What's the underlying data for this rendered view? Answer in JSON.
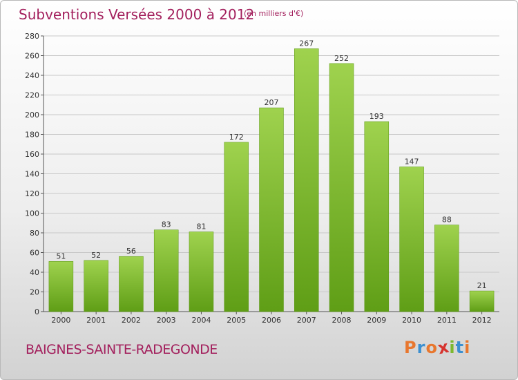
{
  "header": {
    "title": "Subventions Versées 2000 à 2012",
    "unit_note": "(en milliers d'€)"
  },
  "footer": {
    "commune": "BAIGNES-SAINTE-RADEGONDE",
    "logo_text": "Proxiti"
  },
  "colors": {
    "title": "#a3205d",
    "bar_top": "#9fd24e",
    "bar_bottom": "#5f9e16",
    "logo_letters": [
      "#e8772e",
      "#3b8fd0",
      "#e8772e",
      "#d6332e",
      "#7cb82f",
      "#3b8fd0",
      "#e8772e"
    ]
  },
  "chart_data": {
    "type": "bar",
    "title": "Subventions Versées 2000 à 2012",
    "subtitle": "(en milliers d'€)",
    "categories": [
      "2000",
      "2001",
      "2002",
      "2003",
      "2004",
      "2005",
      "2006",
      "2007",
      "2008",
      "2009",
      "2010",
      "2011",
      "2012"
    ],
    "values": [
      51,
      52,
      56,
      83,
      81,
      172,
      207,
      267,
      252,
      193,
      147,
      88,
      21
    ],
    "ylim": [
      0,
      280
    ],
    "yticks": [
      0,
      20,
      40,
      60,
      80,
      100,
      120,
      140,
      160,
      180,
      200,
      220,
      240,
      260,
      280
    ],
    "grid": true,
    "data_labels": true
  }
}
